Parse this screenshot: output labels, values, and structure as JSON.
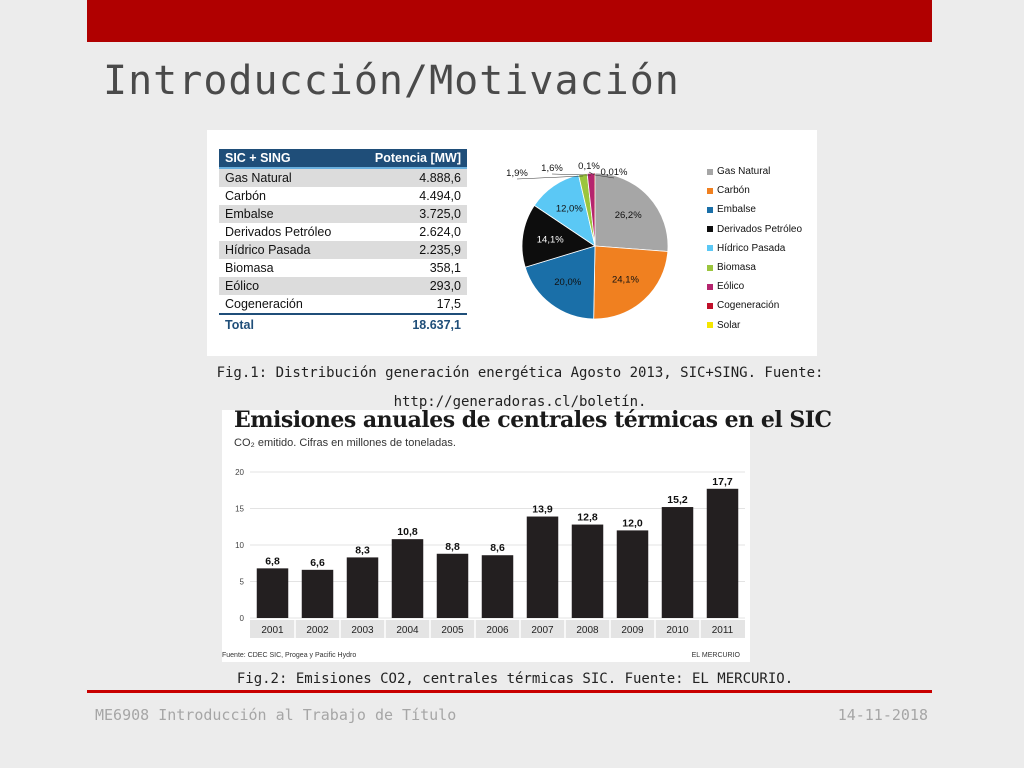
{
  "slide": {
    "title": "Introducción/Motivación",
    "footer_left": "ME6908 Introducción al Trabajo de Título",
    "footer_right": "14-11-2018",
    "accent_color": "#b00000"
  },
  "table": {
    "headers": [
      "SIC + SING",
      "Potencia [MW]"
    ],
    "rows": [
      {
        "label": "Gas Natural",
        "value": "4.888,6"
      },
      {
        "label": "Carbón",
        "value": "4.494,0"
      },
      {
        "label": "Embalse",
        "value": "3.725,0"
      },
      {
        "label": "Derivados Petróleo",
        "value": "2.624,0"
      },
      {
        "label": "Hídrico Pasada",
        "value": "2.235,9"
      },
      {
        "label": "Biomasa",
        "value": "358,1"
      },
      {
        "label": "Eólico",
        "value": "293,0"
      },
      {
        "label": "Cogeneración",
        "value": "17,5"
      }
    ],
    "total": {
      "label": "Total",
      "value": "18.637,1"
    }
  },
  "captions": {
    "fig1_line1": "Fig.1: Distribución generación energética Agosto 2013, SIC+SING. Fuente:",
    "fig1_line2": "http://generadoras.cl/boletín.",
    "fig2": "Fig.2: Emisiones CO2, centrales térmicas SIC. Fuente: EL MERCURIO."
  },
  "chart_data": [
    {
      "type": "pie",
      "slices": [
        {
          "name": "Gas Natural",
          "value": 26.2,
          "label": "26,2%",
          "color": "#a6a6a6"
        },
        {
          "name": "Carbón",
          "value": 24.1,
          "label": "24,1%",
          "color": "#f08020"
        },
        {
          "name": "Embalse",
          "value": 20.0,
          "label": "20,0%",
          "color": "#1a6fa8"
        },
        {
          "name": "Derivados Petróleo",
          "value": 14.1,
          "label": "14,1%",
          "color": "#0d0d0d"
        },
        {
          "name": "Hídrico Pasada",
          "value": 12.0,
          "label": "12,0%",
          "color": "#5bc8f5"
        },
        {
          "name": "Biomasa",
          "value": 1.9,
          "label": "1,9%",
          "color": "#9bc53d"
        },
        {
          "name": "Eólico",
          "value": 1.6,
          "label": "1,6%",
          "color": "#b5256e"
        },
        {
          "name": "Cogeneración",
          "value": 0.1,
          "label": "0,1%",
          "color": "#c0102a"
        },
        {
          "name": "Solar",
          "value": 0.01,
          "label": "0,01%",
          "color": "#f5e600"
        }
      ],
      "legend": "right"
    },
    {
      "type": "bar",
      "title": "Emisiones anuales de centrales térmicas en el SIC",
      "subtitle": "CO₂ emitido. Cifras en millones de toneladas.",
      "categories": [
        "2001",
        "2002",
        "2003",
        "2004",
        "2005",
        "2006",
        "2007",
        "2008",
        "2009",
        "2010",
        "2011"
      ],
      "values": [
        6.8,
        6.6,
        8.3,
        10.8,
        8.8,
        8.6,
        13.9,
        12.8,
        12.0,
        15.2,
        17.7
      ],
      "value_labels": [
        "6,8",
        "6,6",
        "8,3",
        "10,8",
        "8,8",
        "8,6",
        "13,9",
        "12,8",
        "12,0",
        "15,2",
        "17,7"
      ],
      "ylim": [
        0,
        20
      ],
      "yticks": [
        0,
        5,
        10,
        15,
        20
      ],
      "grid": true,
      "bar_color": "#231f20",
      "source": "Fuente: CDEC SIC, Progea y Pacific Hydro",
      "brand": "EL MERCURIO"
    }
  ]
}
